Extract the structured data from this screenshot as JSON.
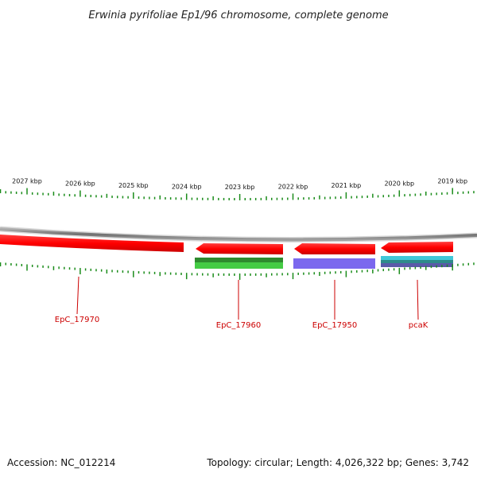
{
  "title": "Erwinia pyrifoliae Ep1/96 chromosome, complete genome",
  "footer": {
    "accession": "Accession: NC_012214",
    "summary": "Topology: circular; Length: 4,026,322 bp; Genes: 3,742"
  },
  "ruler": {
    "labels": [
      {
        "text": "2027 kbp",
        "kbp": 2027
      },
      {
        "text": "2026 kbp",
        "kbp": 2026
      },
      {
        "text": "2025 kbp",
        "kbp": 2025
      },
      {
        "text": "2024 kbp",
        "kbp": 2024
      },
      {
        "text": "2023 kbp",
        "kbp": 2023
      },
      {
        "text": "2022 kbp",
        "kbp": 2022
      },
      {
        "text": "2021 kbp",
        "kbp": 2021
      },
      {
        "text": "2020 kbp",
        "kbp": 2020
      },
      {
        "text": "2019 kbp",
        "kbp": 2019
      }
    ],
    "tick_color": "#1a8c1a"
  },
  "genes": [
    {
      "name": "EpC_17970",
      "strand": "reverse",
      "color": "#ff0000",
      "label_color": "#cc0000"
    },
    {
      "name": "EpC_17960",
      "strand": "reverse",
      "color": "#ff0000",
      "label_color": "#cc0000"
    },
    {
      "name": "EpC_17950",
      "strand": "reverse",
      "color": "#ff0000",
      "label_color": "#cc0000"
    },
    {
      "name": "pcaK",
      "strand": "reverse",
      "color": "#ff0000",
      "label_color": "#cc0000"
    }
  ],
  "feature_tracks": [
    {
      "feature": "EpC_17960",
      "colors": [
        "#2e8b2e",
        "#44cc44"
      ]
    },
    {
      "feature": "EpC_17950",
      "colors": [
        "#7b68ee"
      ]
    },
    {
      "feature": "pcaK",
      "colors": [
        "#40c8d8",
        "#2e8b8b",
        "#5a5aa8"
      ]
    }
  ],
  "colors": {
    "backbone": "#8a8a8a",
    "forward_strand": "#ff0000",
    "ruler_ticks": "#1a8c1a"
  }
}
